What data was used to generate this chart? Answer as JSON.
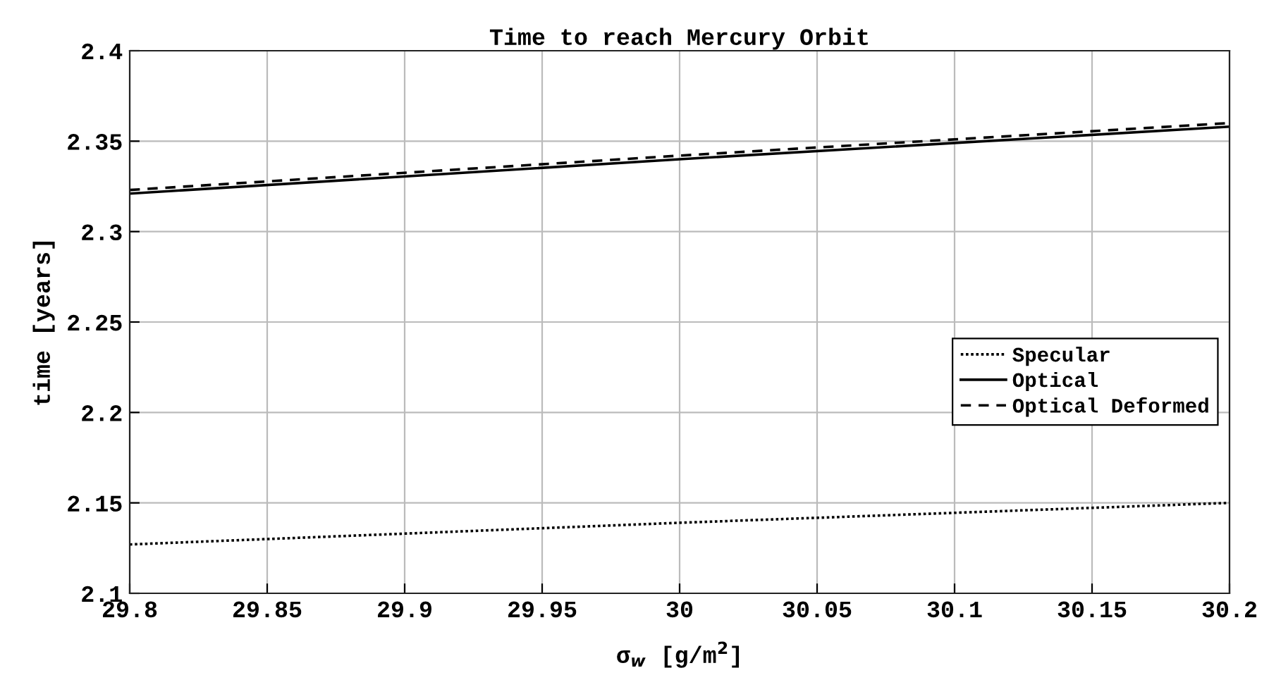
{
  "chart_data": {
    "type": "line",
    "title": "Time to reach Mercury Orbit",
    "xlabel": "σ$_{w}$ [g/m$^{2}$]",
    "ylabel": "time [years]",
    "x": [
      29.8,
      30.0,
      30.2
    ],
    "series": [
      {
        "name": "Specular",
        "color": "#000000",
        "line_style": "dotted",
        "values": [
          2.127,
          2.139,
          2.15
        ]
      },
      {
        "name": "Optical",
        "color": "#000000",
        "line_style": "solid",
        "values": [
          2.321,
          2.34,
          2.358
        ]
      },
      {
        "name": "Optical Deformed",
        "color": "#000000",
        "line_style": "dashed",
        "values": [
          2.323,
          2.342,
          2.36
        ]
      }
    ],
    "xlim": [
      29.8,
      30.2
    ],
    "xticks": [
      29.8,
      29.85,
      29.9,
      29.95,
      30,
      30.05,
      30.1,
      30.15,
      30.2
    ],
    "ylim": [
      2.1,
      2.4
    ],
    "yticks": [
      2.1,
      2.15,
      2.2,
      2.25,
      2.3,
      2.35,
      2.4
    ],
    "grid": true,
    "legend": "right",
    "marker": "none"
  }
}
